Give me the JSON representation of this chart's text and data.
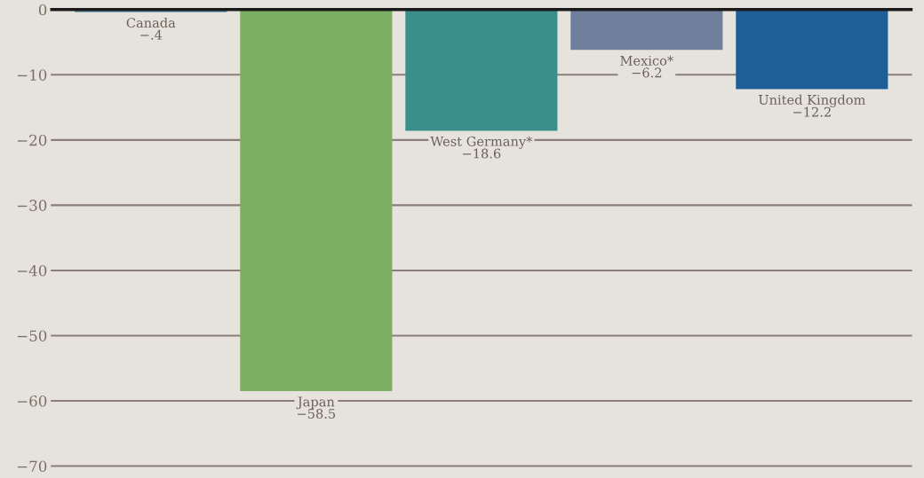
{
  "chart_data": {
    "type": "bar",
    "categories": [
      "Canada",
      "Japan",
      "West Germany*",
      "Mexico*",
      "United Kingdom"
    ],
    "values": [
      -0.4,
      -58.5,
      -18.6,
      -6.2,
      -12.2
    ],
    "value_labels": [
      "−.4",
      "−58.5",
      "−18.6",
      "−6.2",
      "−12.2"
    ],
    "colors": [
      "#5e8fa3",
      "#7cae63",
      "#3a8f8a",
      "#6f7f9c",
      "#1f5f98"
    ],
    "ylim": [
      -70,
      0
    ],
    "yticks": [
      0,
      {
        "value": -10,
        "label": "−10"
      },
      {
        "value": -20,
        "label": "−20"
      },
      {
        "value": -30,
        "label": "−30"
      },
      {
        "value": -40,
        "label": "−40"
      },
      {
        "value": -50,
        "label": "−50"
      },
      {
        "value": -60,
        "label": "−60"
      },
      {
        "value": -70,
        "label": "−70"
      }
    ],
    "grid": "y",
    "tick_labels": "y"
  }
}
